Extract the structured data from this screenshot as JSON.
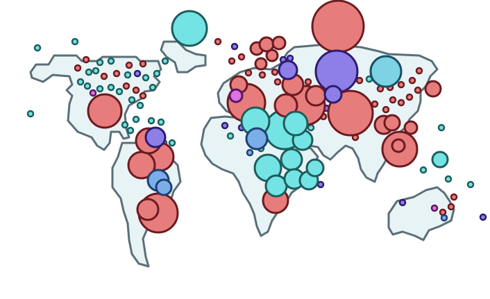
{
  "map": {
    "type": "bubble-map",
    "title": "",
    "legend": "none",
    "basemap": "simplified-world-blocks",
    "colors": {
      "land_fill": "#e8f3f5",
      "land_stroke": "#5a6f78",
      "red_fill": "#e67c7c",
      "red_stroke": "#6b1a1f",
      "teal_fill": "#74e3e3",
      "teal_stroke": "#1e5c5c",
      "purple_fill": "#8d7ee8",
      "purple_stroke": "#2d1b6e",
      "blue_fill": "#7aaee8",
      "blue_stroke": "#1f3f73",
      "skyblue_fill": "#7dd3e3",
      "skyblue_stroke": "#1a4f66",
      "magenta_fill": "#e072e6",
      "magenta_stroke": "#5a1660"
    },
    "continents": [
      "north-america",
      "south-america",
      "europe",
      "africa",
      "asia",
      "australia"
    ]
  }
}
